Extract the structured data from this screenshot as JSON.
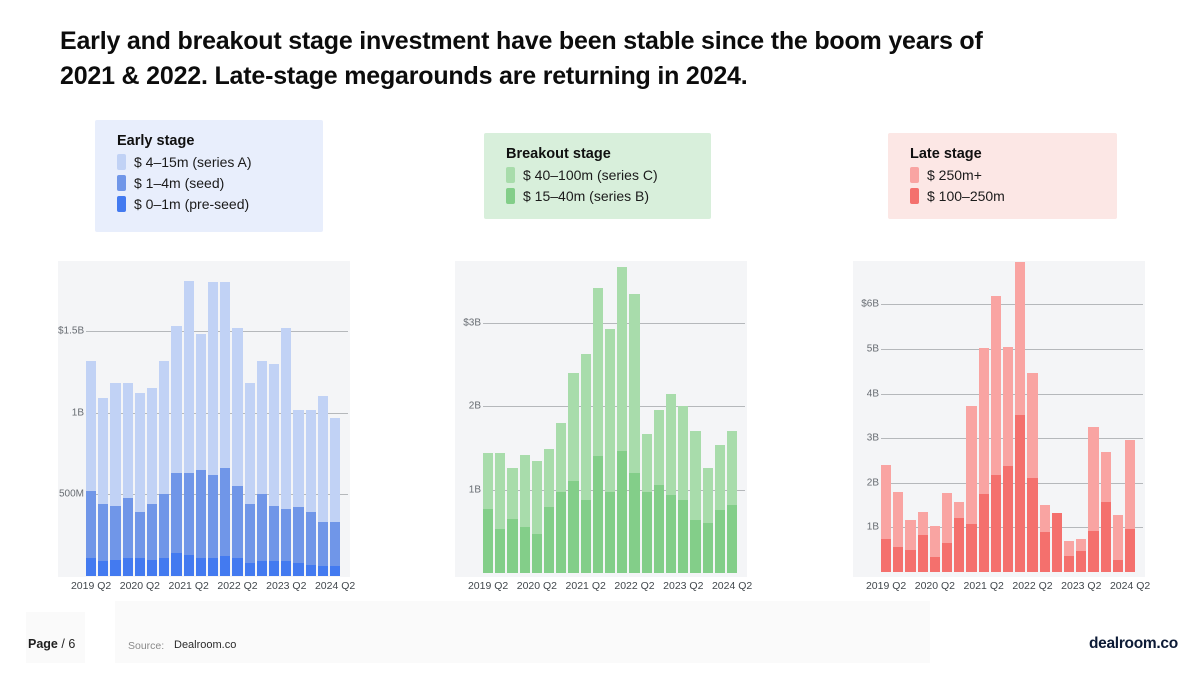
{
  "title": {
    "line1": "Early and breakout stage investment have been stable since the boom years of",
    "line2": "2021 & 2022. Late-stage megarounds are returning in 2024."
  },
  "legends": [
    {
      "title": "Early stage",
      "bg": "#e8eefc",
      "items": [
        {
          "label": "$ 4–15m (series A)",
          "color": "#c1d2f5"
        },
        {
          "label": "$ 1–4m (seed)",
          "color": "#7096e8"
        },
        {
          "label": "$ 0–1m (pre-seed)",
          "color": "#437af0"
        }
      ]
    },
    {
      "title": "Breakout stage",
      "bg": "#d8efdb",
      "items": [
        {
          "label": "$ 40–100m (series C)",
          "color": "#a8dcab"
        },
        {
          "label": "$ 15–40m (series B)",
          "color": "#83ce89"
        }
      ]
    },
    {
      "title": "Late stage",
      "bg": "#fce7e5",
      "items": [
        {
          "label": "$ 250m+",
          "color": "#f9a4a2"
        },
        {
          "label": "$ 100–250m",
          "color": "#f4706d"
        }
      ]
    }
  ],
  "chart_data": [
    {
      "type": "bar",
      "stacked": true,
      "name": "early-stage",
      "unit": "$B",
      "categories": [
        "2019 Q2",
        "2019 Q3",
        "2019 Q4",
        "2020 Q1",
        "2020 Q2",
        "2020 Q3",
        "2020 Q4",
        "2021 Q1",
        "2021 Q2",
        "2021 Q3",
        "2021 Q4",
        "2022 Q1",
        "2022 Q2",
        "2022 Q3",
        "2022 Q4",
        "2023 Q1",
        "2023 Q2",
        "2023 Q3",
        "2023 Q4",
        "2024 Q1",
        "2024 Q2"
      ],
      "x_tick_labels": [
        "2019 Q2",
        "2020 Q2",
        "2021 Q2",
        "2022 Q2",
        "2023 Q2",
        "2024 Q2"
      ],
      "series": [
        {
          "name": "$ 0–1m (pre-seed)",
          "color": "#437af0",
          "values": [
            0.11,
            0.09,
            0.1,
            0.11,
            0.11,
            0.1,
            0.11,
            0.14,
            0.13,
            0.11,
            0.11,
            0.12,
            0.11,
            0.08,
            0.09,
            0.09,
            0.09,
            0.08,
            0.07,
            0.06,
            0.06
          ]
        },
        {
          "name": "$ 1–4m (seed)",
          "color": "#7096e8",
          "values": [
            0.41,
            0.35,
            0.33,
            0.37,
            0.28,
            0.34,
            0.39,
            0.49,
            0.5,
            0.54,
            0.51,
            0.54,
            0.44,
            0.36,
            0.41,
            0.34,
            0.32,
            0.34,
            0.32,
            0.27,
            0.27
          ]
        },
        {
          "name": "$ 4–15m (series A)",
          "color": "#c1d2f5",
          "values": [
            0.8,
            0.65,
            0.75,
            0.7,
            0.73,
            0.71,
            0.82,
            0.9,
            1.18,
            0.83,
            1.18,
            1.14,
            0.97,
            0.74,
            0.82,
            0.87,
            1.11,
            0.6,
            0.63,
            0.77,
            0.64
          ]
        }
      ],
      "yticks": [
        {
          "value": 0.5,
          "label": "500M"
        },
        {
          "value": 1,
          "label": "1B"
        },
        {
          "value": 1.5,
          "label": "$1.5B"
        }
      ],
      "ylim": [
        0,
        1.93
      ],
      "grid": true,
      "legend_position": "above"
    },
    {
      "type": "bar",
      "stacked": true,
      "name": "breakout-stage",
      "unit": "$B",
      "categories": [
        "2019 Q2",
        "2019 Q3",
        "2019 Q4",
        "2020 Q1",
        "2020 Q2",
        "2020 Q3",
        "2020 Q4",
        "2021 Q1",
        "2021 Q2",
        "2021 Q3",
        "2021 Q4",
        "2022 Q1",
        "2022 Q2",
        "2022 Q3",
        "2022 Q4",
        "2023 Q1",
        "2023 Q2",
        "2023 Q3",
        "2023 Q4",
        "2024 Q1",
        "2024 Q2"
      ],
      "x_tick_labels": [
        "2019 Q2",
        "2020 Q2",
        "2021 Q2",
        "2022 Q2",
        "2023 Q2",
        "2024 Q2"
      ],
      "series": [
        {
          "name": "$ 15–40m (series B)",
          "color": "#83ce89",
          "values": [
            0.77,
            0.53,
            0.65,
            0.55,
            0.47,
            0.79,
            0.97,
            1.1,
            0.87,
            1.4,
            0.97,
            1.46,
            1.2,
            0.97,
            1.05,
            0.93,
            0.88,
            0.63,
            0.6,
            0.76,
            0.81
          ]
        },
        {
          "name": "$ 40–100m (series C)",
          "color": "#a8dcab",
          "values": [
            0.67,
            0.91,
            0.61,
            0.87,
            0.87,
            0.7,
            0.83,
            1.3,
            1.75,
            2.02,
            1.95,
            2.21,
            2.15,
            0.7,
            0.91,
            1.22,
            1.12,
            1.07,
            0.66,
            0.77,
            0.89
          ]
        }
      ],
      "yticks": [
        {
          "value": 1,
          "label": "1B"
        },
        {
          "value": 2,
          "label": "2B"
        },
        {
          "value": 3,
          "label": "$3B"
        }
      ],
      "ylim": [
        0,
        3.74
      ],
      "grid": true,
      "legend_position": "above"
    },
    {
      "type": "bar",
      "stacked": true,
      "name": "late-stage",
      "unit": "$B",
      "categories": [
        "2019 Q2",
        "2019 Q3",
        "2019 Q4",
        "2020 Q1",
        "2020 Q2",
        "2020 Q3",
        "2020 Q4",
        "2021 Q1",
        "2021 Q2",
        "2021 Q3",
        "2021 Q4",
        "2022 Q1",
        "2022 Q2",
        "2022 Q3",
        "2022 Q4",
        "2023 Q1",
        "2023 Q2",
        "2023 Q3",
        "2023 Q4",
        "2024 Q1",
        "2024 Q2"
      ],
      "x_tick_labels": [
        "2019 Q2",
        "2020 Q2",
        "2021 Q2",
        "2022 Q2",
        "2023 Q2",
        "2024 Q2"
      ],
      "series": [
        {
          "name": "$ 100–250m",
          "color": "#f4706d",
          "values": [
            0.75,
            0.57,
            0.5,
            0.83,
            0.33,
            0.65,
            1.22,
            1.07,
            1.75,
            2.18,
            2.37,
            3.53,
            2.1,
            0.9,
            1.32,
            0.37,
            0.48,
            0.91,
            1.57,
            0.27,
            0.96
          ]
        },
        {
          "name": "$ 250m+",
          "color": "#f9a4a2",
          "values": [
            1.65,
            1.23,
            0.67,
            0.52,
            0.7,
            1.11,
            0.35,
            2.66,
            3.28,
            4.0,
            2.67,
            3.42,
            2.37,
            0.61,
            0.0,
            0.33,
            0.26,
            2.33,
            1.12,
            1.0,
            2.0
          ]
        }
      ],
      "yticks": [
        {
          "value": 1,
          "label": "1B"
        },
        {
          "value": 2,
          "label": "2B"
        },
        {
          "value": 3,
          "label": "3B"
        },
        {
          "value": 4,
          "label": "4B"
        },
        {
          "value": 5,
          "label": "5B"
        },
        {
          "value": 6,
          "label": "$6B"
        }
      ],
      "ylim": [
        0,
        6.97
      ],
      "grid": true,
      "legend_position": "above"
    }
  ],
  "footer": {
    "page_label": "Page",
    "page_suffix": "/ 6",
    "source_label": "Source:",
    "source_value": "Dealroom.co",
    "logo_text": "dealroom.co"
  }
}
